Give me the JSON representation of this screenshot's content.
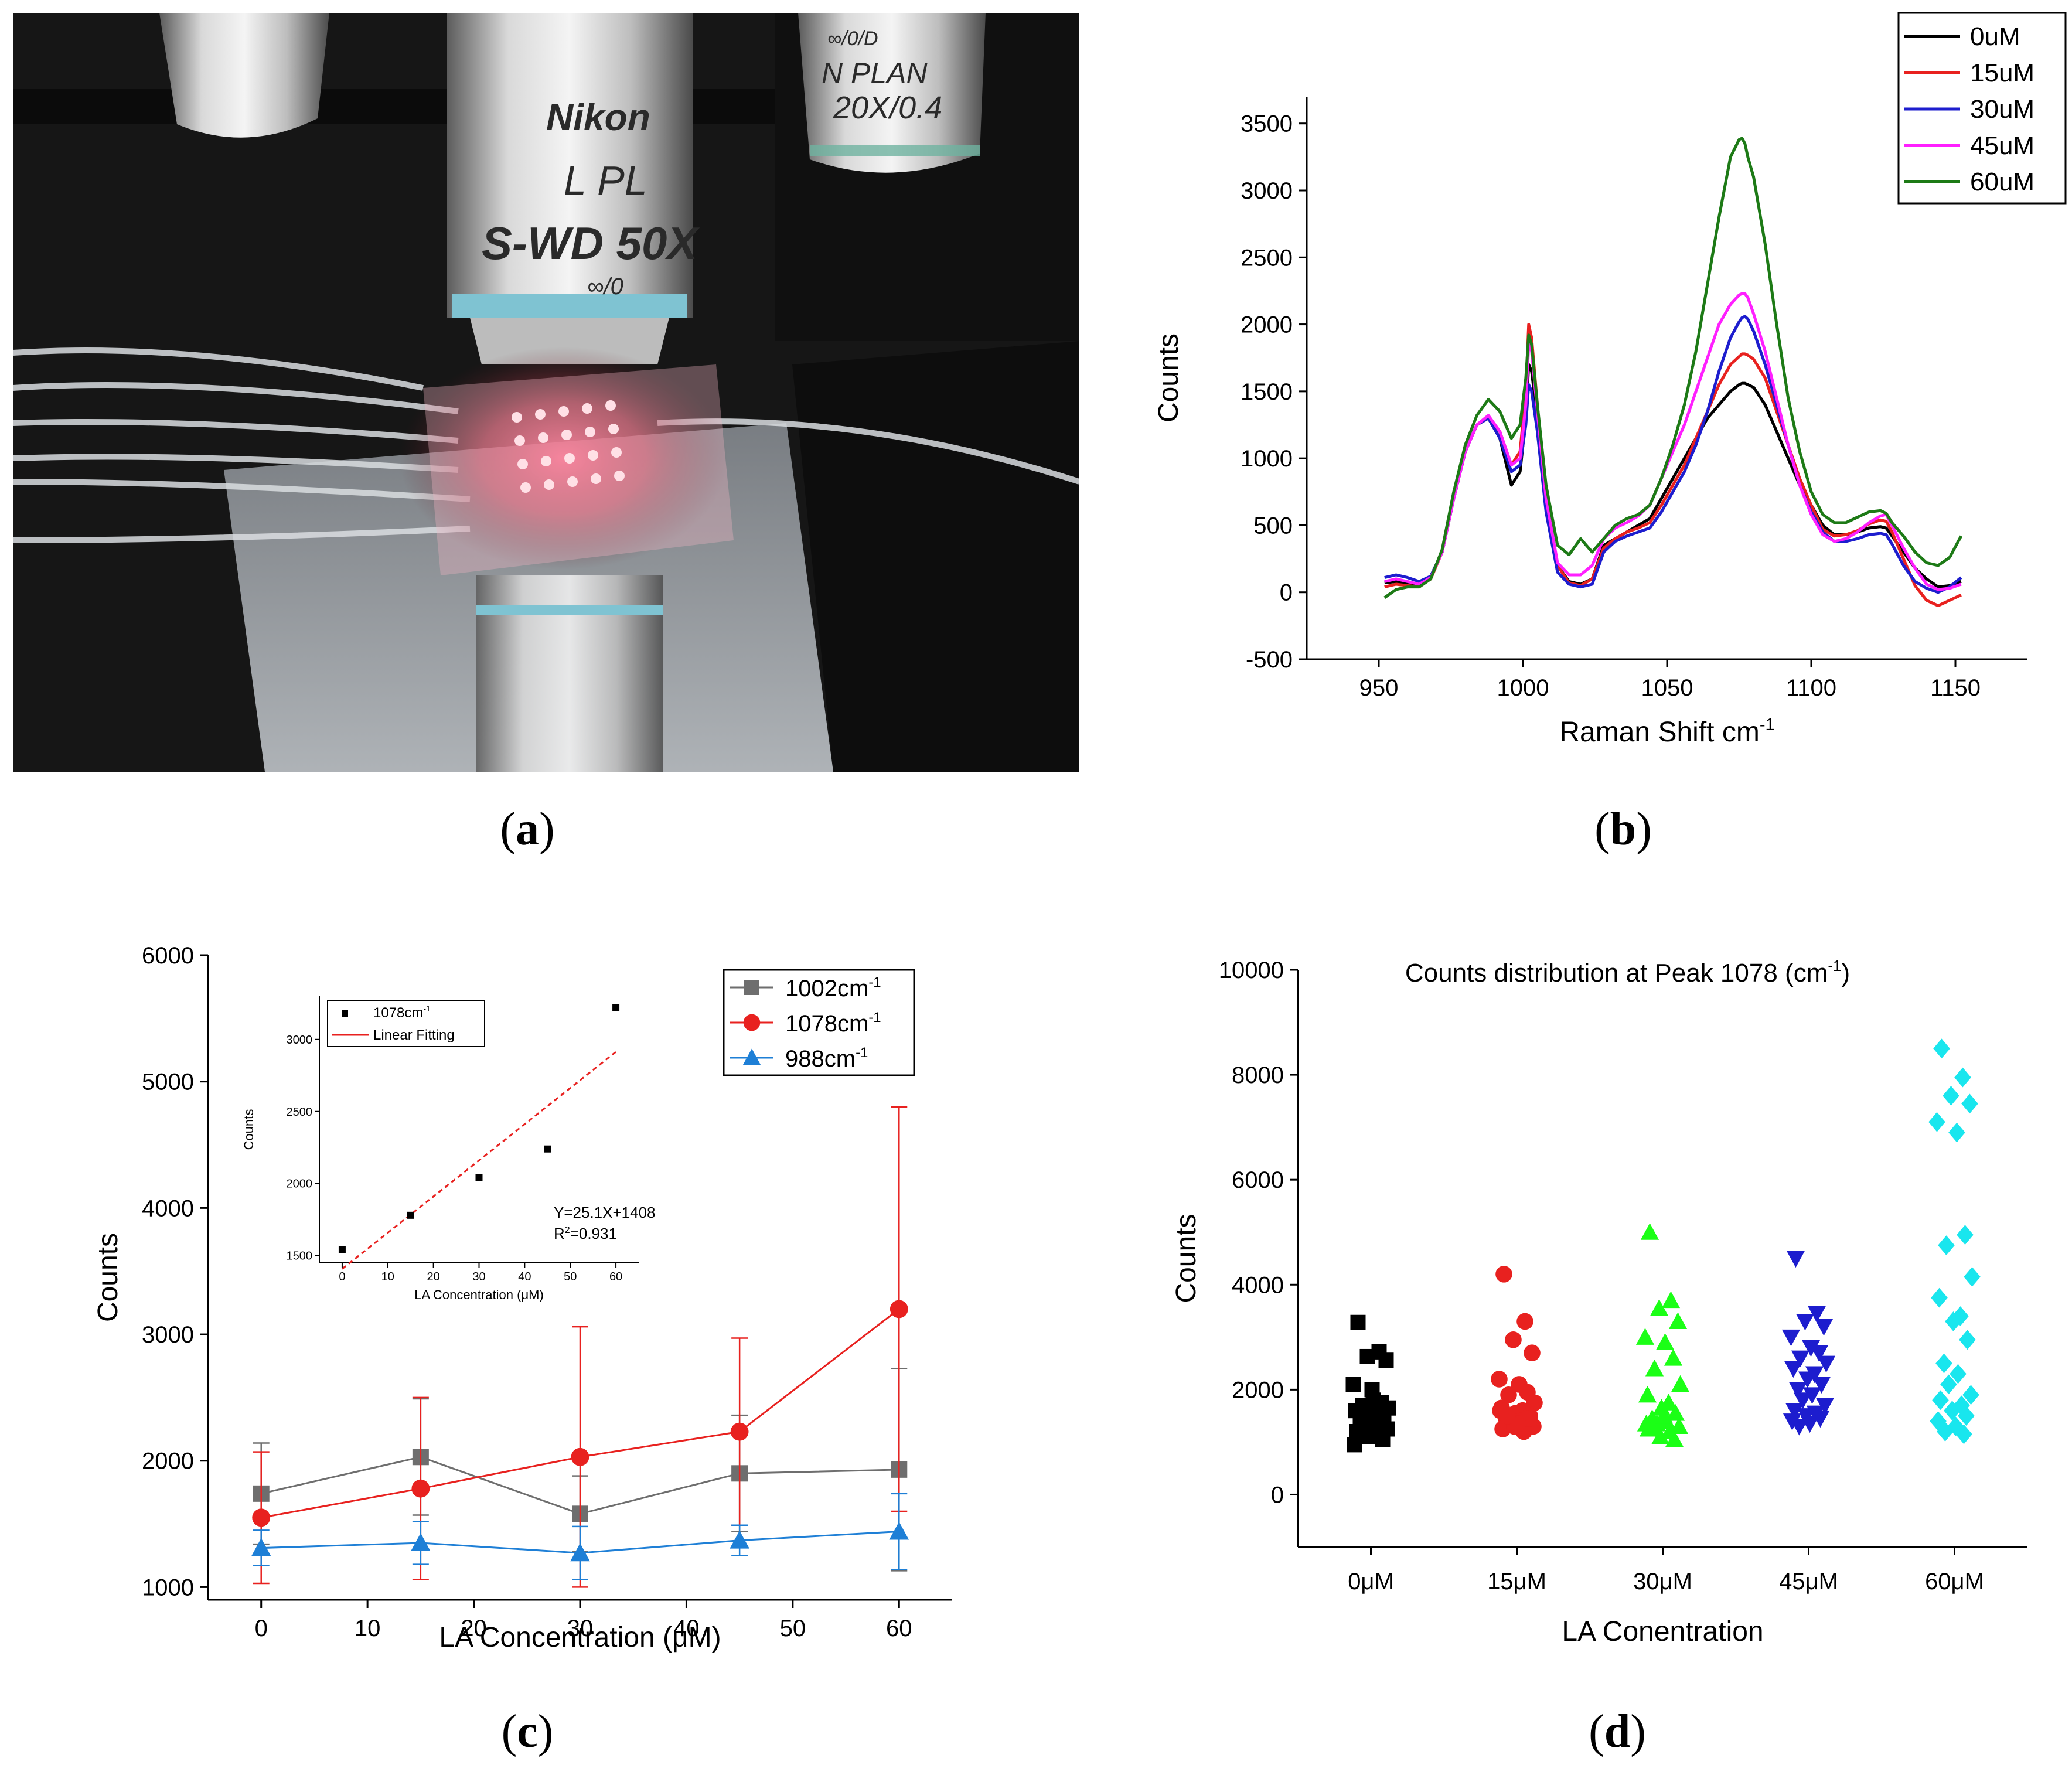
{
  "panels": {
    "a": {
      "label": "a",
      "photo_text": [
        "Nikon",
        "L PL",
        "S-WD 50X",
        "∞/0",
        "N PLAN",
        "20X/0.4",
        "∞/0/D"
      ]
    },
    "b": {
      "label": "b"
    },
    "c": {
      "label": "c"
    },
    "d": {
      "label": "d"
    }
  },
  "colors": {
    "black": "#000000",
    "red": "#e8211f",
    "blue": "#1d1dce",
    "magenta": "#ff1fff",
    "green": "#1d7a16",
    "gray": "#6e6e6e",
    "blue_tri": "#1e7fd6",
    "green_tri": "#1bff16",
    "cyan": "#19e6ee"
  },
  "chart_data": [
    {
      "id": "b",
      "type": "line",
      "title": "",
      "xlabel": "Raman Shift cm",
      "xlabel_sup": "-1",
      "ylabel": "Counts",
      "xlim": [
        925,
        1175
      ],
      "ylim": [
        -500,
        3700
      ],
      "xticks": [
        950,
        1000,
        1050,
        1100,
        1150
      ],
      "yticks": [
        -500,
        0,
        500,
        1000,
        1500,
        2000,
        2500,
        3000,
        3500
      ],
      "legend_position": "top-right",
      "x": [
        952,
        956,
        960,
        964,
        968,
        972,
        976,
        980,
        984,
        988,
        992,
        996,
        999,
        1001,
        1002,
        1003,
        1005,
        1008,
        1012,
        1016,
        1020,
        1024,
        1028,
        1032,
        1036,
        1040,
        1044,
        1048,
        1052,
        1056,
        1060,
        1064,
        1068,
        1072,
        1075,
        1076,
        1077,
        1078,
        1080,
        1084,
        1088,
        1092,
        1096,
        1100,
        1104,
        1108,
        1112,
        1116,
        1120,
        1124,
        1126,
        1128,
        1132,
        1136,
        1140,
        1144,
        1148,
        1152
      ],
      "series": [
        {
          "name": "0uM",
          "color": "#000000",
          "values": [
            70,
            80,
            70,
            60,
            120,
            300,
            700,
            1050,
            1250,
            1300,
            1150,
            800,
            900,
            1300,
            1700,
            1650,
            1300,
            700,
            200,
            80,
            60,
            100,
            350,
            400,
            450,
            500,
            550,
            700,
            850,
            1000,
            1150,
            1300,
            1400,
            1500,
            1550,
            1560,
            1560,
            1550,
            1530,
            1400,
            1200,
            1000,
            800,
            650,
            500,
            430,
            430,
            450,
            480,
            490,
            480,
            420,
            300,
            180,
            100,
            40,
            50,
            80
          ]
        },
        {
          "name": "15uM",
          "color": "#e8211f",
          "values": [
            40,
            60,
            50,
            40,
            100,
            300,
            700,
            1050,
            1250,
            1300,
            1200,
            950,
            1050,
            1500,
            2000,
            1900,
            1400,
            700,
            200,
            70,
            50,
            100,
            330,
            400,
            450,
            480,
            520,
            650,
            800,
            950,
            1150,
            1350,
            1550,
            1700,
            1760,
            1780,
            1780,
            1770,
            1740,
            1600,
            1350,
            1100,
            850,
            650,
            470,
            420,
            430,
            460,
            510,
            540,
            530,
            450,
            250,
            50,
            -60,
            -100,
            -60,
            -20
          ]
        },
        {
          "name": "30uM",
          "color": "#1d1dce",
          "values": [
            110,
            130,
            110,
            80,
            120,
            300,
            700,
            1050,
            1250,
            1300,
            1150,
            900,
            950,
            1250,
            1550,
            1500,
            1200,
            600,
            150,
            60,
            40,
            60,
            300,
            380,
            420,
            450,
            480,
            600,
            750,
            900,
            1100,
            1350,
            1650,
            1900,
            2020,
            2050,
            2060,
            2040,
            1950,
            1700,
            1400,
            1100,
            800,
            600,
            450,
            380,
            380,
            400,
            430,
            440,
            430,
            360,
            200,
            80,
            30,
            0,
            40,
            110
          ]
        },
        {
          "name": "45uM",
          "color": "#ff1fff",
          "values": [
            80,
            100,
            80,
            60,
            110,
            300,
            700,
            1050,
            1250,
            1320,
            1200,
            950,
            1000,
            1400,
            1850,
            1800,
            1350,
            700,
            220,
            130,
            130,
            200,
            400,
            480,
            520,
            570,
            650,
            850,
            1050,
            1250,
            1500,
            1750,
            2000,
            2150,
            2220,
            2230,
            2230,
            2200,
            2080,
            1800,
            1450,
            1100,
            800,
            580,
            430,
            380,
            400,
            450,
            520,
            570,
            580,
            500,
            330,
            180,
            60,
            20,
            30,
            60
          ]
        },
        {
          "name": "60uM",
          "color": "#1d7a16",
          "values": [
            -40,
            20,
            40,
            40,
            100,
            320,
            750,
            1100,
            1320,
            1440,
            1350,
            1150,
            1250,
            1600,
            1920,
            1850,
            1400,
            800,
            350,
            280,
            400,
            300,
            400,
            500,
            550,
            580,
            650,
            850,
            1100,
            1400,
            1800,
            2300,
            2800,
            3250,
            3380,
            3390,
            3350,
            3250,
            3100,
            2600,
            2000,
            1450,
            1050,
            750,
            580,
            520,
            520,
            560,
            600,
            610,
            590,
            520,
            420,
            300,
            220,
            200,
            260,
            420
          ]
        }
      ]
    },
    {
      "id": "c",
      "type": "line",
      "title": "",
      "xlabel": "LA Concentration (μM)",
      "ylabel": "Counts",
      "xlim": [
        -5,
        65
      ],
      "ylim": [
        900,
        6000
      ],
      "xticks": [
        0,
        10,
        20,
        30,
        40,
        50,
        60
      ],
      "yticks": [
        1000,
        2000,
        3000,
        4000,
        5000,
        6000
      ],
      "legend_position": "top-right",
      "x": [
        0,
        15,
        30,
        45,
        60
      ],
      "series": [
        {
          "name": "1002cm",
          "name_sup": "-1",
          "color": "#6e6e6e",
          "marker": "square",
          "values": [
            1740,
            2030,
            1580,
            1900,
            1930
          ],
          "err": [
            400,
            460,
            300,
            460,
            800
          ]
        },
        {
          "name": "1078cm",
          "name_sup": "-1",
          "color": "#e8211f",
          "marker": "circle",
          "values": [
            1550,
            1780,
            2030,
            2230,
            3200
          ],
          "err": [
            520,
            720,
            1030,
            740,
            1600
          ]
        },
        {
          "name": "988cm",
          "name_sup": "-1",
          "color": "#1e7fd6",
          "marker": "triangle",
          "values": [
            1310,
            1350,
            1270,
            1370,
            1440
          ],
          "err": [
            140,
            170,
            210,
            120,
            300
          ]
        }
      ],
      "inset": {
        "type": "scatter",
        "xlabel": "LA Concentration (μM)",
        "ylabel": "Counts",
        "xlim": [
          -5,
          65
        ],
        "ylim": [
          1450,
          3300
        ],
        "xticks": [
          0,
          10,
          20,
          30,
          40,
          50,
          60
        ],
        "yticks": [
          1500,
          2000,
          2500,
          3000
        ],
        "legend_position": "top-left",
        "points_name": "1078cm",
        "points_name_sup": "-1",
        "fit_name": "Linear Fitting",
        "x": [
          0,
          15,
          30,
          45,
          60
        ],
        "values": [
          1540,
          1780,
          2040,
          2240,
          3220
        ],
        "fit": {
          "slope": 25.1,
          "intercept": 1408
        },
        "equation": "Y=25.1X+1408",
        "r2_prefix": "R",
        "r2_sup": "2",
        "r2_value": "=0.931"
      }
    },
    {
      "id": "d",
      "type": "scatter",
      "title": "Counts distribution at Peak 1078 (cm",
      "title_sup": "-1",
      "title_end": ")",
      "xlabel": "LA Conentration",
      "ylabel": "Counts",
      "ylim": [
        -1000,
        10000
      ],
      "yticks": [
        0,
        2000,
        4000,
        6000,
        8000,
        10000
      ],
      "categories": [
        "0μM",
        "15μM",
        "30μM",
        "45μM",
        "60μM"
      ],
      "series": [
        {
          "name": "0μM",
          "color": "#000000",
          "marker": "square",
          "values": [
            3280,
            2720,
            2630,
            2560,
            2100,
            1800,
            1750,
            1700,
            1650,
            1600,
            1550,
            1500,
            1450,
            1400,
            1350,
            1300,
            1250,
            1200,
            1150,
            1100,
            1050,
            950,
            2000,
            1380
          ]
        },
        {
          "name": "15μM",
          "color": "#e8211f",
          "marker": "circle",
          "values": [
            4200,
            3300,
            2950,
            2700,
            2200,
            2100,
            1950,
            1900,
            1750,
            1650,
            1600,
            1550,
            1500,
            1450,
            1400,
            1350,
            1300,
            1250,
            1200,
            1300,
            1450,
            1600,
            1350,
            1500
          ]
        },
        {
          "name": "30μM",
          "color": "#1bff16",
          "marker": "triangle",
          "values": [
            5000,
            3700,
            3550,
            3300,
            3000,
            2900,
            2600,
            2400,
            2100,
            1900,
            1750,
            1650,
            1550,
            1450,
            1400,
            1350,
            1300,
            1250,
            1200,
            1100,
            1050,
            1350,
            1500,
            1250
          ]
        },
        {
          "name": "45μM",
          "color": "#1d1dce",
          "marker": "triangle-down",
          "values": [
            4500,
            3450,
            3300,
            3200,
            3000,
            2800,
            2700,
            2600,
            2500,
            2400,
            2300,
            2200,
            2100,
            2000,
            1900,
            1800,
            1700,
            1600,
            1550,
            1500,
            1450,
            1400,
            1350,
            1300
          ]
        },
        {
          "name": "60μM",
          "color": "#19e6ee",
          "marker": "diamond",
          "values": [
            8500,
            7950,
            7600,
            7450,
            7100,
            6900,
            4950,
            4750,
            4150,
            3750,
            3400,
            3300,
            2950,
            2500,
            2300,
            2100,
            1900,
            1800,
            1700,
            1600,
            1500,
            1400,
            1300,
            1200,
            1150
          ]
        }
      ]
    }
  ]
}
